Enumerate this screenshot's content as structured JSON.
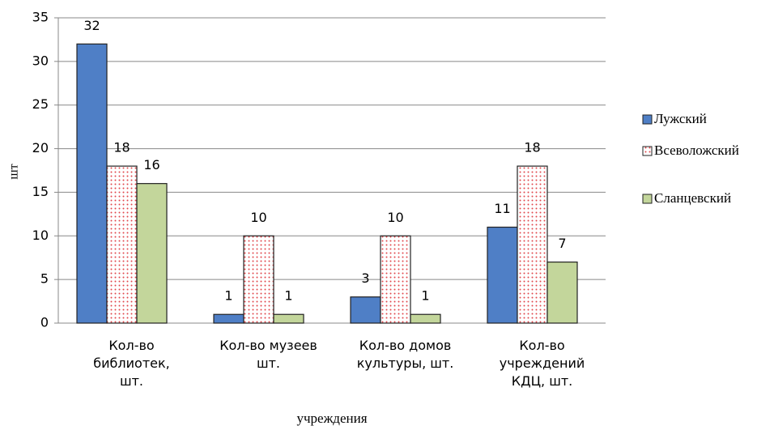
{
  "chart_data": {
    "type": "bar",
    "categories": [
      "Кол-во библиотек, шт.",
      "Кол-во музеев шт.",
      "Кол-во домов культуры, шт.",
      "Кол-во учреждений КДЦ, шт."
    ],
    "series": [
      {
        "name": "Лужский",
        "color": "#4f7fc6",
        "values": [
          32,
          1,
          3,
          11
        ]
      },
      {
        "name": "Всеволожский",
        "color": "#e0474c",
        "pattern": "dots",
        "values": [
          18,
          10,
          10,
          18
        ]
      },
      {
        "name": "Сланцевский",
        "color": "#c3d69b",
        "values": [
          16,
          1,
          1,
          7
        ]
      }
    ],
    "ylabel": "шт",
    "xlabel": "учреждения",
    "ylim": [
      0,
      35
    ],
    "yticks": [
      0,
      5,
      10,
      15,
      20,
      25,
      30,
      35
    ],
    "grid": true,
    "legend": "right"
  }
}
